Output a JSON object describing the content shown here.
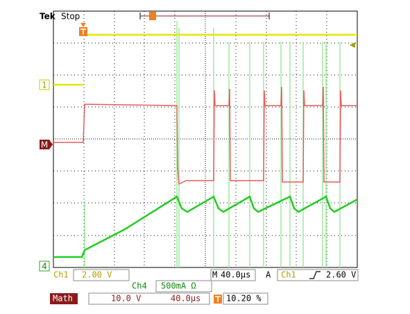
{
  "header": {
    "brand": "Tek",
    "status": "Stop"
  },
  "channel_markers": {
    "ch1": "1",
    "math": "M",
    "ch4": "4"
  },
  "readout": {
    "ch1": {
      "label": "Ch1",
      "scale": "2.00 V"
    },
    "timebase": {
      "label": "M",
      "scale": "40.0µs"
    },
    "trigger": {
      "label": "A",
      "source": "Ch1",
      "level": "2.60 V"
    },
    "ch4": {
      "label": "Ch4",
      "scale": "500mA Ω"
    },
    "math": {
      "label": "Math",
      "scale": "10.0 V",
      "time": "40.0µs"
    },
    "trigger_position": "10.20 %"
  }
}
